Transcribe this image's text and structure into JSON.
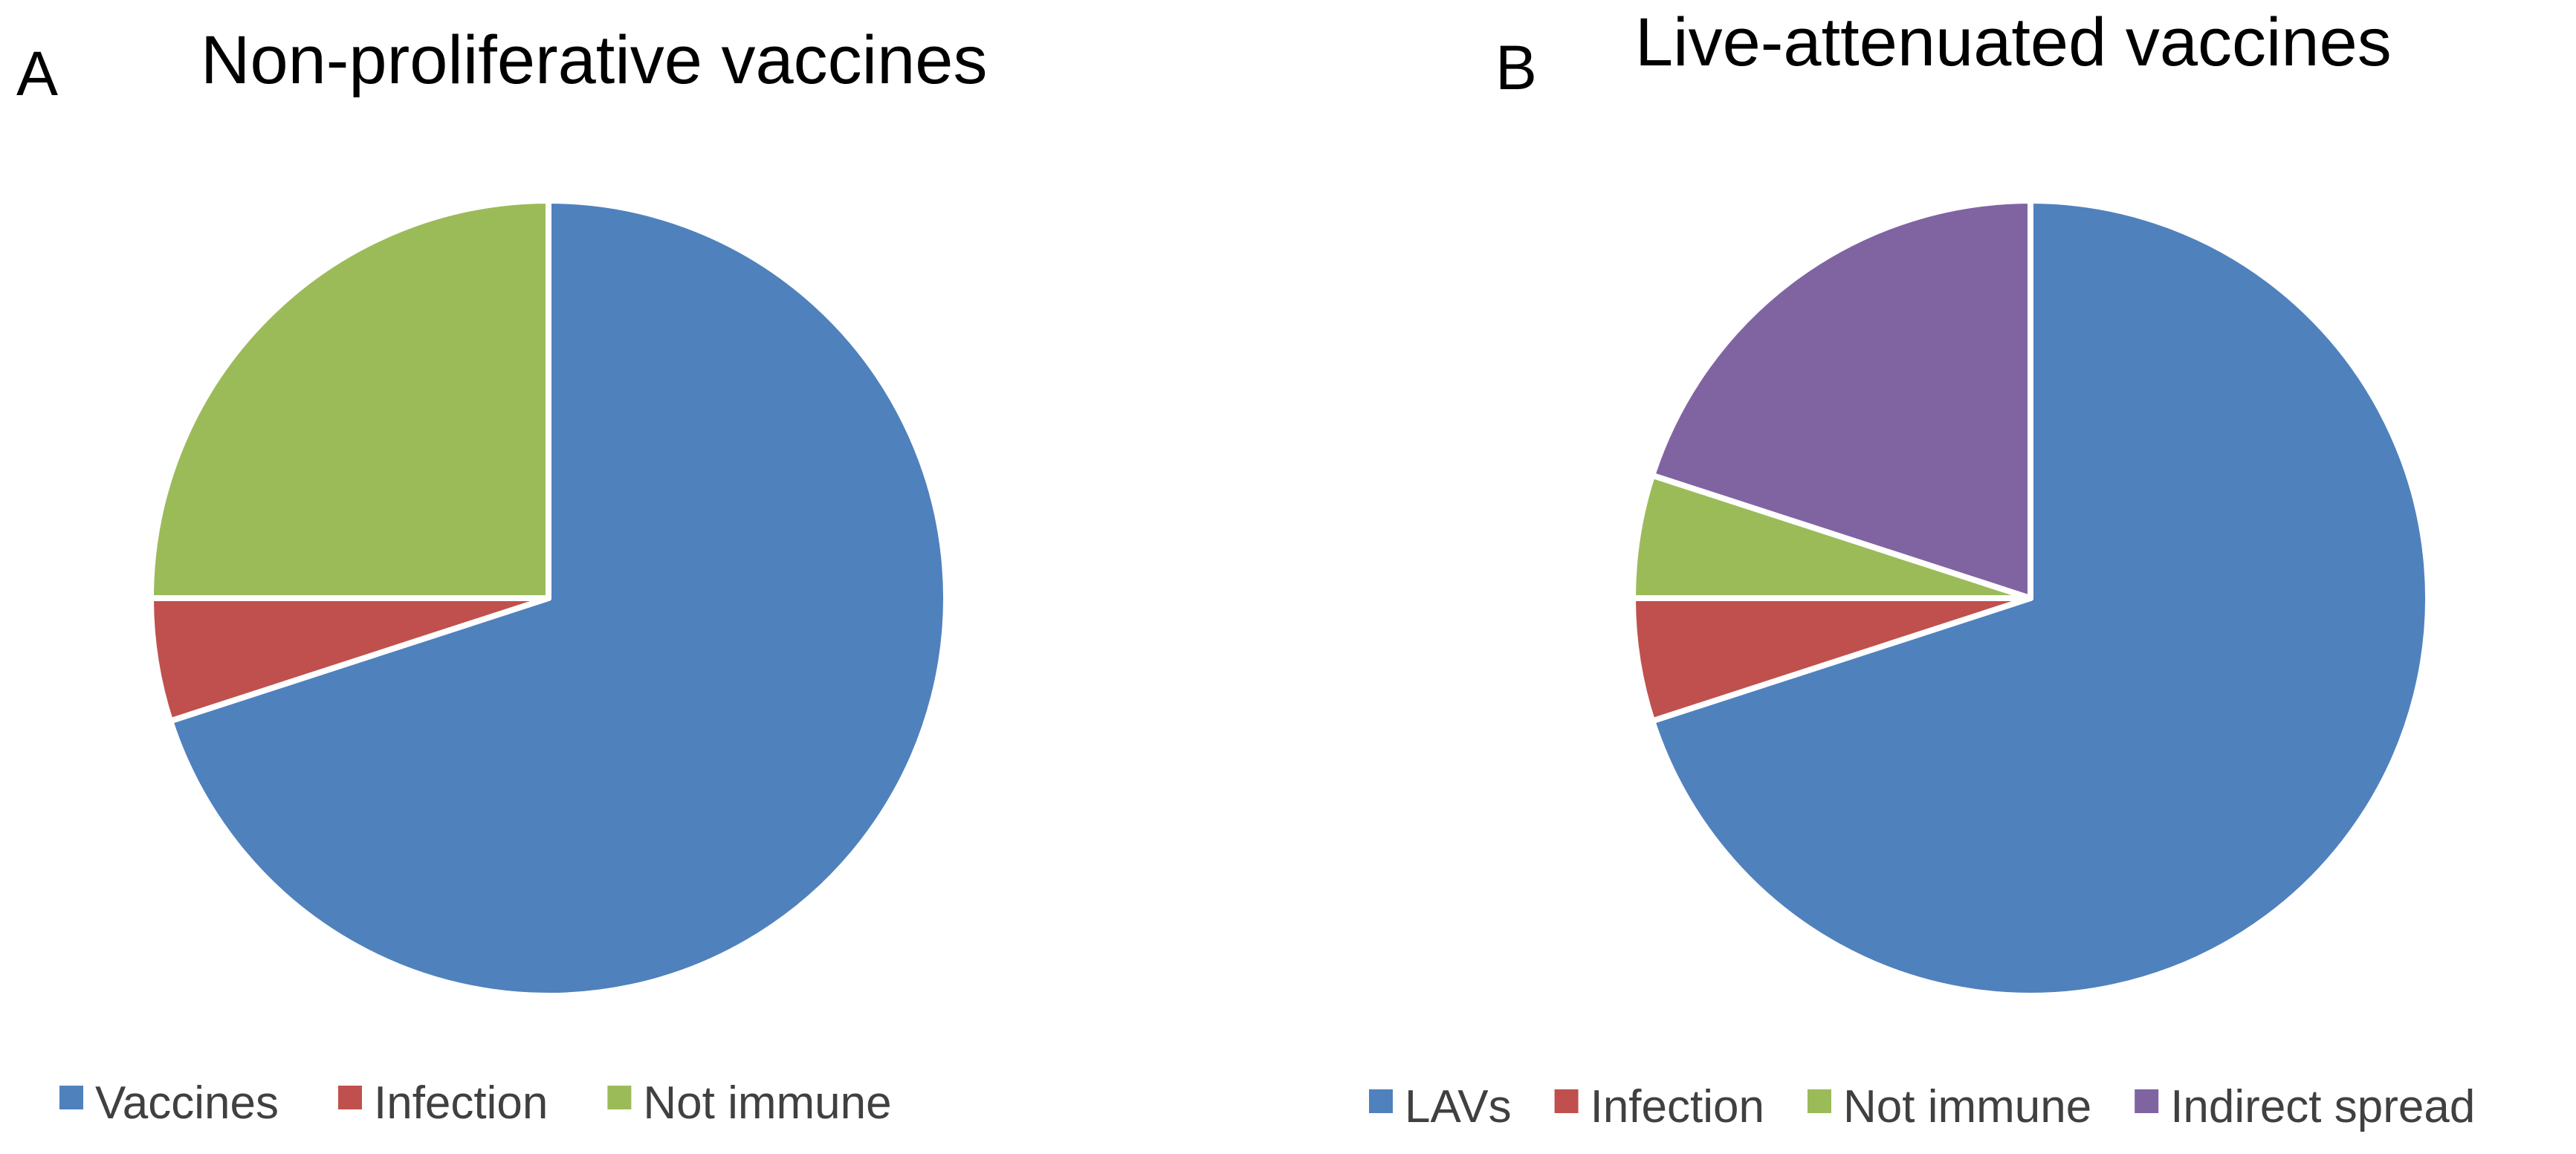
{
  "chart_data": [
    {
      "type": "pie",
      "panel": "A",
      "title": "Non-proliferative vaccines",
      "start_angle_deg": 0,
      "direction": "clockwise",
      "slices": [
        {
          "label": "Vaccines",
          "value": 70,
          "color": "#4F81BD"
        },
        {
          "label": "Infection",
          "value": 5,
          "color": "#C0504D"
        },
        {
          "label": "Not immune",
          "value": 25,
          "color": "#9BBB59"
        }
      ],
      "legend": {
        "position": "bottom"
      }
    },
    {
      "type": "pie",
      "panel": "B",
      "title": "Live-attenuated vaccines",
      "start_angle_deg": 0,
      "direction": "clockwise",
      "slices": [
        {
          "label": "LAVs",
          "value": 70,
          "color": "#4F81BD"
        },
        {
          "label": "Infection",
          "value": 5,
          "color": "#C0504D"
        },
        {
          "label": "Not immune",
          "value": 5,
          "color": "#9BBB59"
        },
        {
          "label": "Indirect spread",
          "value": 20,
          "color": "#8064A2"
        }
      ],
      "legend": {
        "position": "bottom"
      }
    }
  ]
}
